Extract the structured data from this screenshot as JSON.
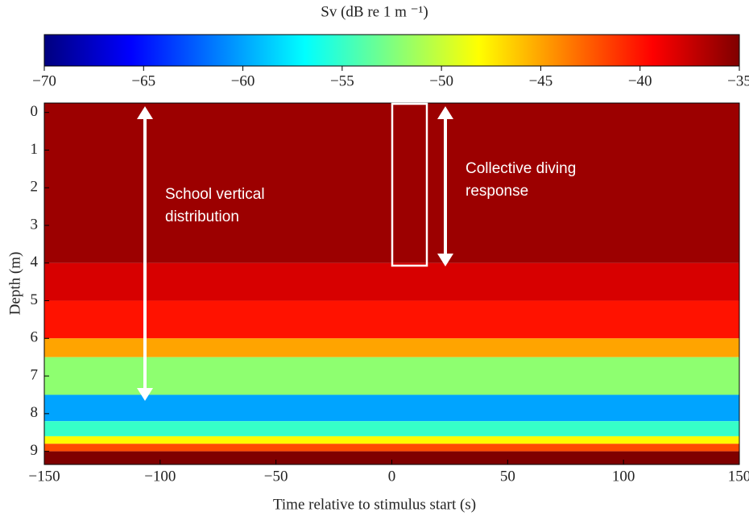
{
  "chart_data": {
    "type": "echogram",
    "colorbar_label": "Sv (dB re 1 m ⁻¹)",
    "clim": [
      -70,
      -35
    ],
    "cticks": [
      {
        "value": -70,
        "label": "−70"
      },
      {
        "value": -65,
        "label": "−65"
      },
      {
        "value": -60,
        "label": "−60"
      },
      {
        "value": -55,
        "label": "−55"
      },
      {
        "value": -50,
        "label": "−50"
      },
      {
        "value": -45,
        "label": "−45"
      },
      {
        "value": -40,
        "label": "−40"
      },
      {
        "value": -35,
        "label": "−35"
      }
    ],
    "colormap": [
      "#00007f",
      "#0000ff",
      "#007fff",
      "#00ffff",
      "#7fff7f",
      "#ffff00",
      "#ff7f00",
      "#ff0000",
      "#7f0000"
    ],
    "xlabel": "Time relative to stimulus start (s)",
    "ylabel": "Depth (m)",
    "xlim": [
      -150,
      150
    ],
    "xticks": [
      {
        "value": -150,
        "label": "−150"
      },
      {
        "value": -100,
        "label": "−100"
      },
      {
        "value": -50,
        "label": "−50"
      },
      0,
      50,
      100,
      150
    ],
    "ylim": [
      -0.25,
      9.35
    ],
    "y_inverted": true,
    "yticks": [
      0,
      1,
      2,
      3,
      4,
      5,
      6,
      7,
      8,
      9
    ],
    "depth_bins": [
      -0.25,
      4,
      5,
      6,
      6.5,
      7.5,
      8.2,
      8.6,
      8.8,
      9.0,
      9.35
    ],
    "values": [
      -36,
      -38,
      -40,
      -45,
      -52,
      -60,
      -55,
      -48,
      -42,
      -35
    ],
    "annotations": [
      "School vertical",
      "distribution",
      "Collective diving",
      "response"
    ]
  }
}
